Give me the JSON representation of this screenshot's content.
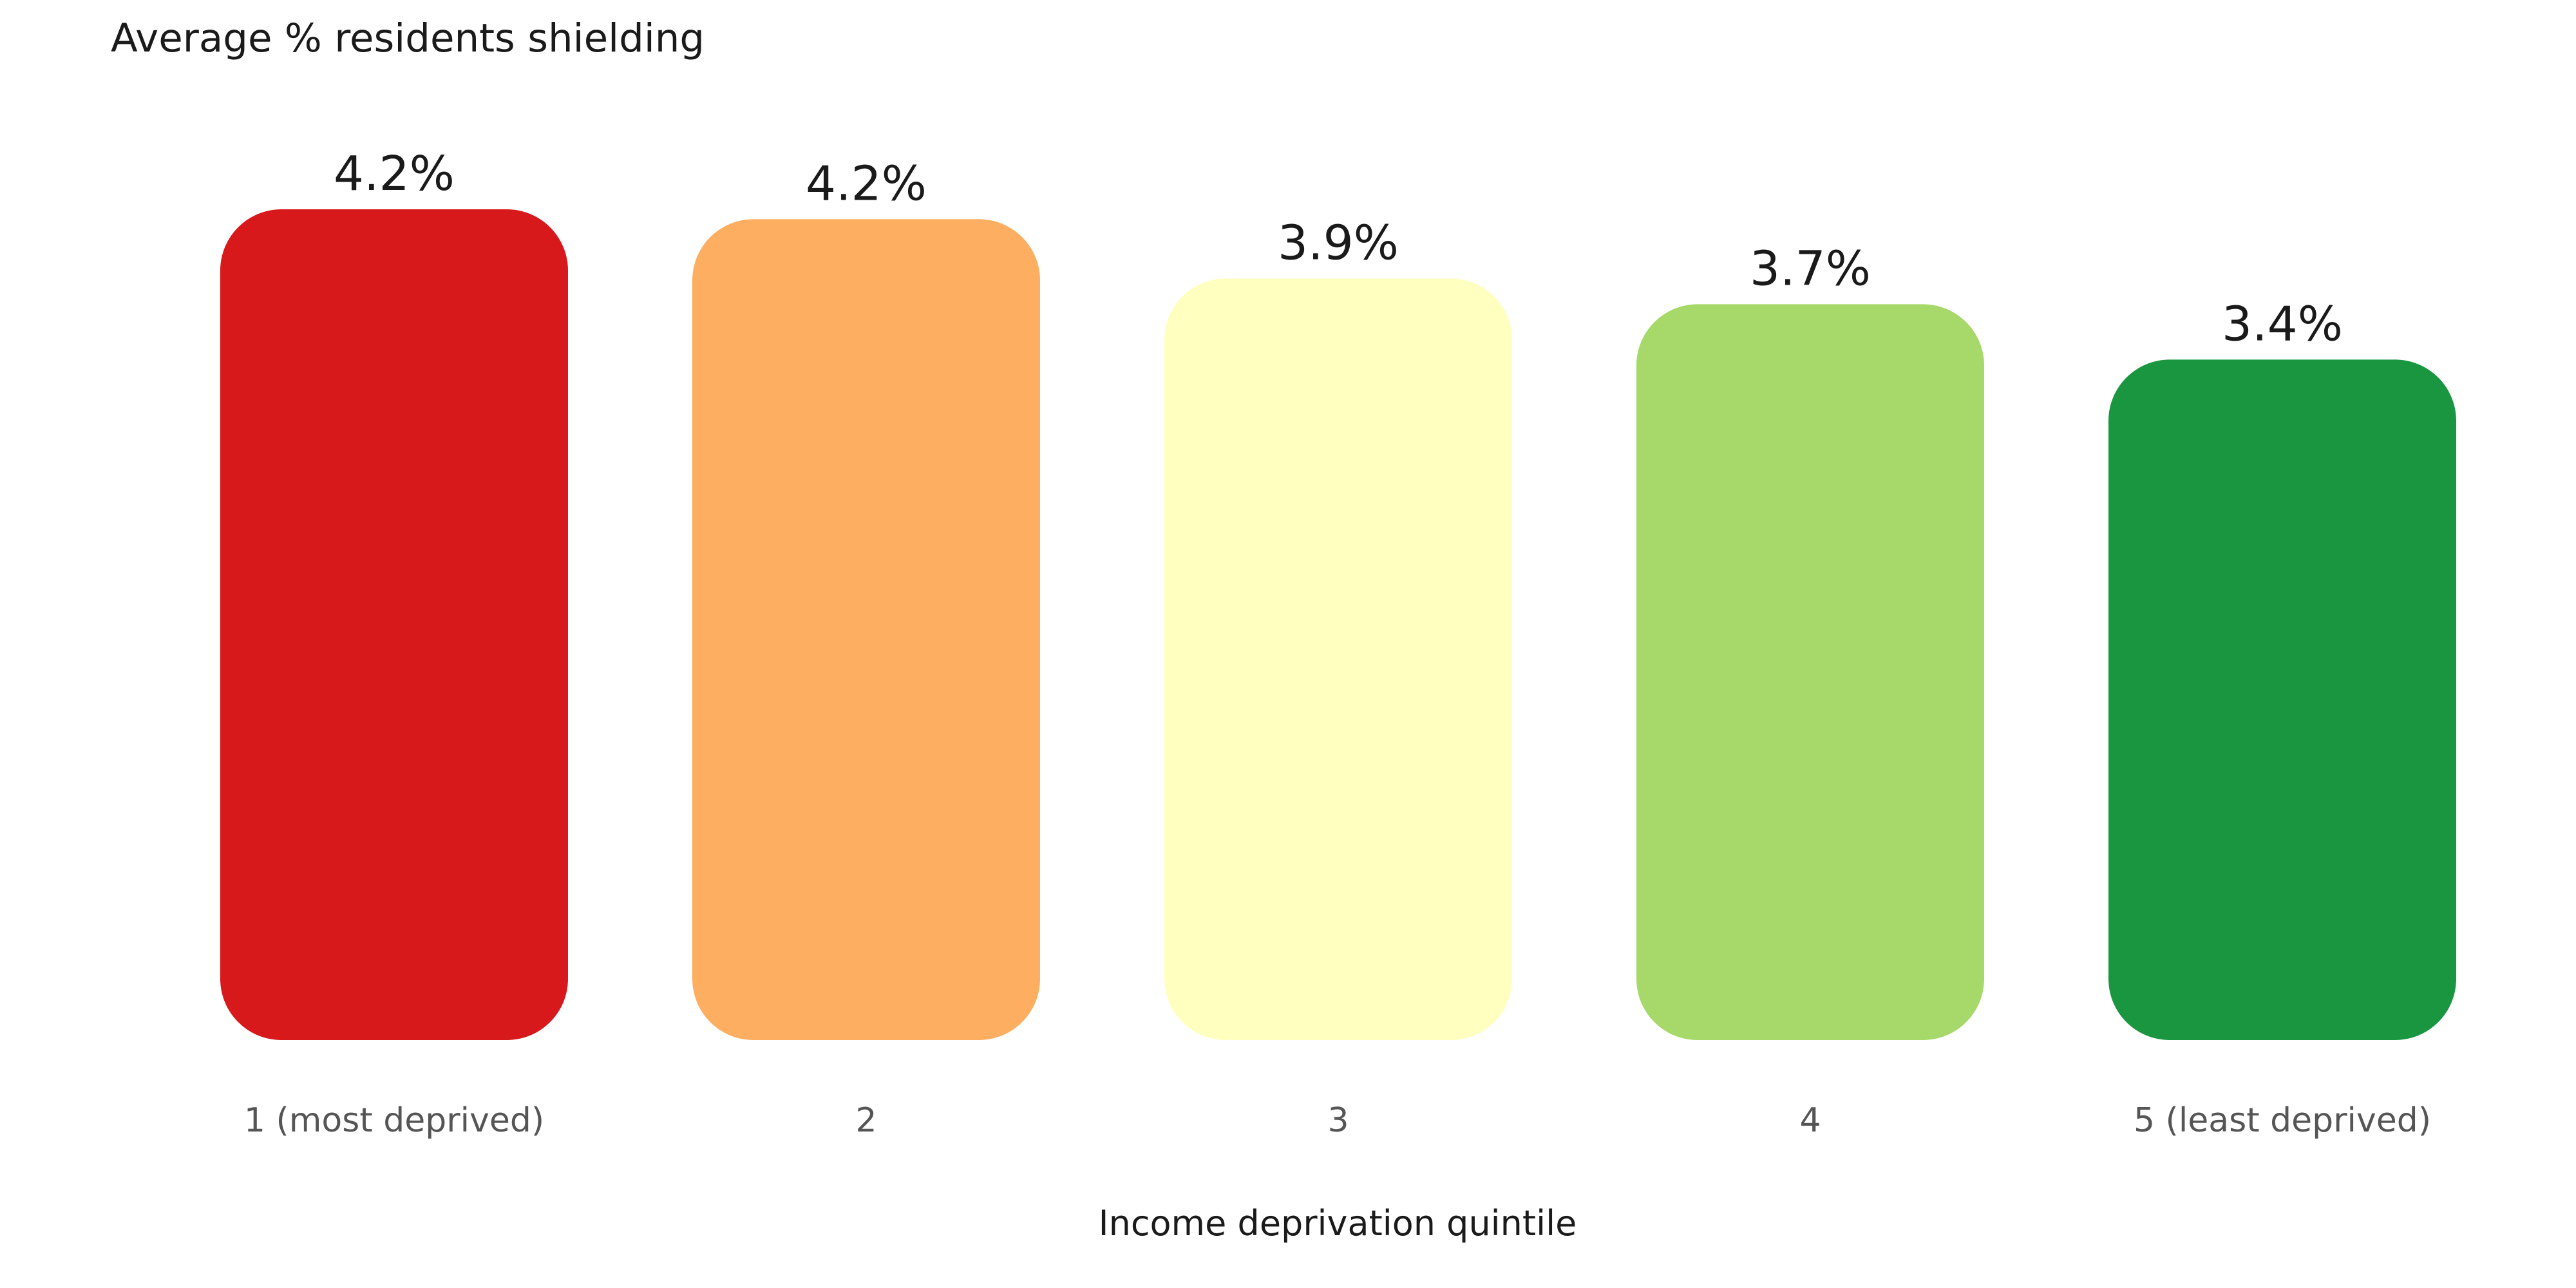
{
  "chart_data": {
    "type": "bar",
    "title": "Average % residents shielding",
    "xlabel": "Income deprivation quintile",
    "ylabel": "",
    "categories": [
      "1 (most deprived)",
      "2",
      "3",
      "4",
      "5 (least deprived)"
    ],
    "values": [
      4.2,
      4.15,
      3.85,
      3.72,
      3.44
    ],
    "data_labels": [
      "4.2%",
      "4.2%",
      "3.9%",
      "3.7%",
      "3.4%"
    ],
    "colors": [
      "#d7191c",
      "#fdae61",
      "#ffffbf",
      "#a6d96a",
      "#1a9641"
    ],
    "ylim": [
      0,
      4.2
    ],
    "grid": false,
    "legend": "none"
  }
}
